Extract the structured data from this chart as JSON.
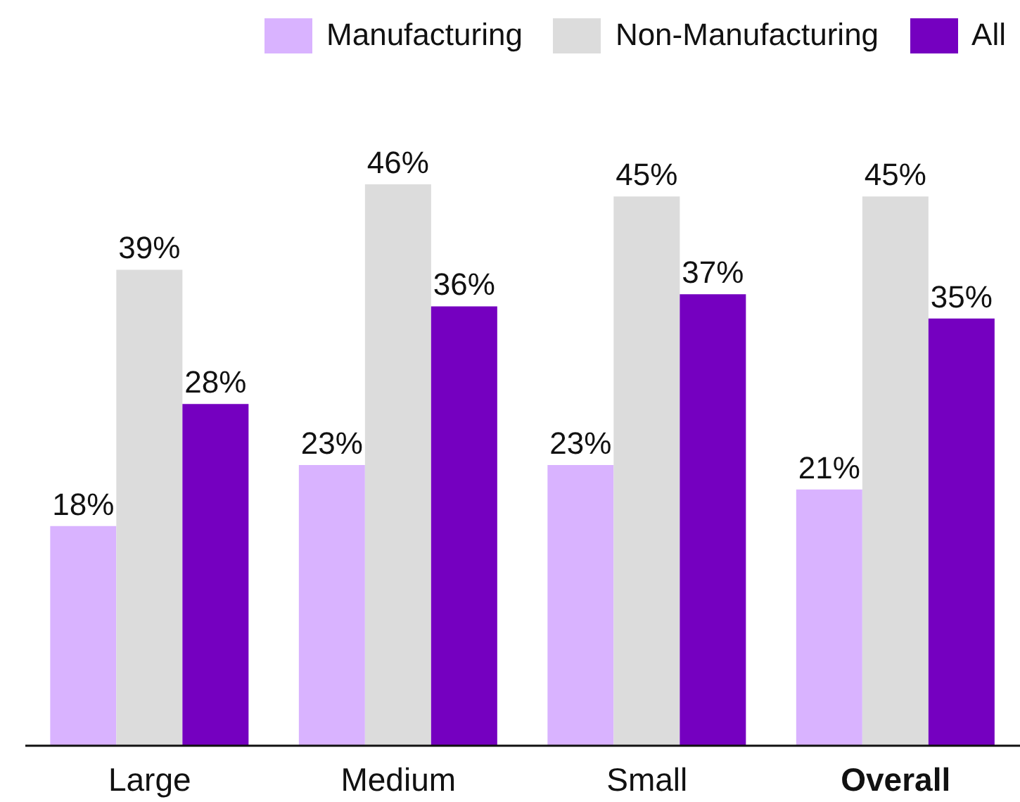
{
  "chart_data": {
    "type": "bar",
    "categories": [
      "Large",
      "Medium",
      "Small",
      "Overall"
    ],
    "series": [
      {
        "name": "Manufacturing",
        "color": "#d9b3ff",
        "values": [
          18,
          23,
          23,
          21
        ],
        "value_labels": [
          "18%",
          "23%",
          "23%",
          "21%"
        ]
      },
      {
        "name": "Non-Manufacturing",
        "color": "#dcdcdc",
        "values": [
          39,
          46,
          45,
          45
        ],
        "value_labels": [
          "39%",
          "46%",
          "45%",
          "45%"
        ]
      },
      {
        "name": "All",
        "color": "#7500c0",
        "values": [
          28,
          36,
          37,
          35
        ],
        "value_labels": [
          "28%",
          "36%",
          "37%",
          "35%"
        ]
      }
    ],
    "legend": "top right",
    "grid": false,
    "tick_labels": "x"
  }
}
